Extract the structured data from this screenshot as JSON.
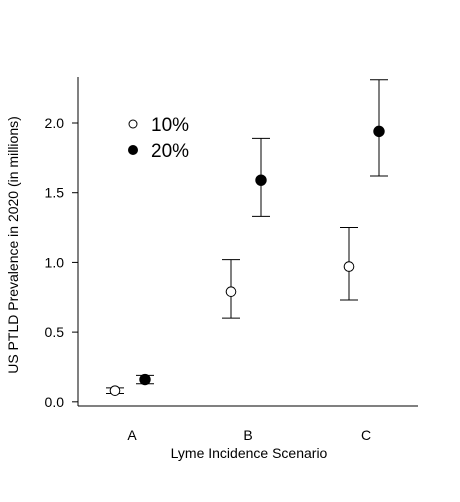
{
  "chart_data": {
    "type": "scatter",
    "xlabel": "Lyme Incidence Scenario",
    "ylabel": "US PTLD Prevalence in 2020 (in millions)",
    "categories": [
      "A",
      "B",
      "C"
    ],
    "ylim": [
      -0.03,
      2.33
    ],
    "yticks": [
      "0.0",
      "0.5",
      "1.0",
      "1.5",
      "2.0"
    ],
    "grid": false,
    "legend_position": "top-left",
    "series": [
      {
        "name": "10%",
        "marker": "open-circle",
        "values": [
          0.08,
          0.79,
          0.97
        ],
        "lower": [
          0.06,
          0.6,
          0.73
        ],
        "upper": [
          0.1,
          1.02,
          1.25
        ]
      },
      {
        "name": "20%",
        "marker": "filled-circle",
        "values": [
          0.16,
          1.59,
          1.94
        ],
        "lower": [
          0.13,
          1.33,
          1.62
        ],
        "upper": [
          0.19,
          1.89,
          2.31
        ]
      }
    ],
    "colors": {
      "axis": "#000000",
      "marker_fill_filled": "#000000",
      "marker_fill_open": "#ffffff"
    }
  }
}
